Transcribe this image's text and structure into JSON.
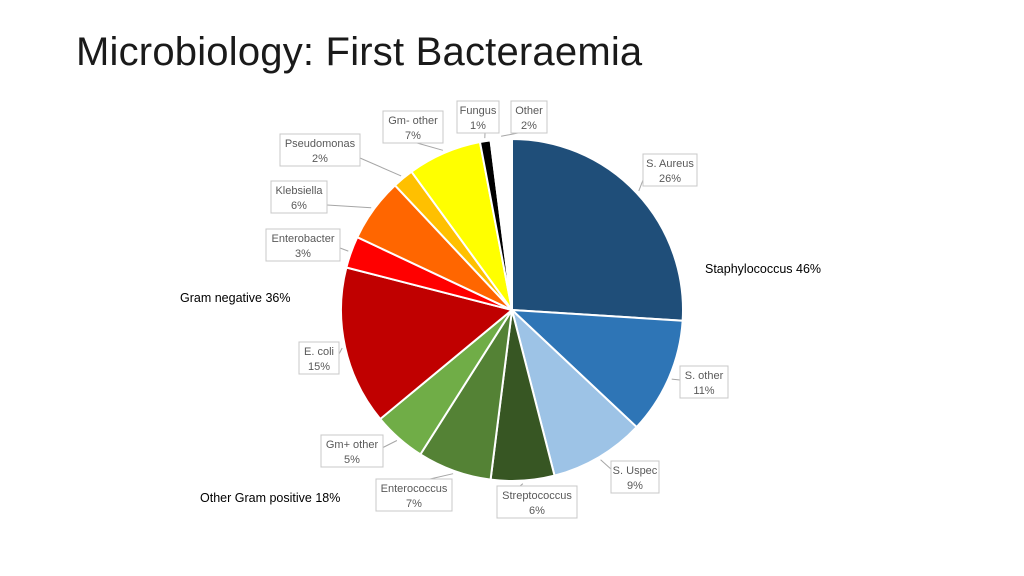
{
  "title": "Microbiology: First Bacteraemia",
  "chart_data": {
    "type": "pie",
    "title": "",
    "slices": [
      {
        "label": "S. Aureus",
        "value": 26,
        "value_label": "26%",
        "color": "#1f4e79"
      },
      {
        "label": "S. other",
        "value": 11,
        "value_label": "11%",
        "color": "#2e75b6"
      },
      {
        "label": "S. Uspec",
        "value": 9,
        "value_label": "9%",
        "color": "#9dc3e6"
      },
      {
        "label": "Streptococcus",
        "value": 6,
        "value_label": "6%",
        "color": "#375623"
      },
      {
        "label": "Enterococcus",
        "value": 7,
        "value_label": "7%",
        "color": "#548235"
      },
      {
        "label": "Gm+ other",
        "value": 5,
        "value_label": "5%",
        "color": "#70ad47"
      },
      {
        "label": "E. coli",
        "value": 15,
        "value_label": "15%",
        "color": "#c00000"
      },
      {
        "label": "Enterobacter",
        "value": 3,
        "value_label": "3%",
        "color": "#ff0000"
      },
      {
        "label": "Klebsiella",
        "value": 6,
        "value_label": "6%",
        "color": "#ff6600"
      },
      {
        "label": "Pseudomonas",
        "value": 2,
        "value_label": "2%",
        "color": "#ffc000"
      },
      {
        "label": "Gm- other",
        "value": 7,
        "value_label": "7%",
        "color": "#ffff00"
      },
      {
        "label": "Fungus",
        "value": 1,
        "value_label": "1%",
        "color": "#000000"
      },
      {
        "label": "Other",
        "value": 2,
        "value_label": "2%",
        "color": "#ffffff"
      }
    ],
    "group_labels": [
      {
        "text": "Staphylococcus 46%"
      },
      {
        "text": "Gram negative 36%"
      },
      {
        "text": "Other Gram positive 18%"
      }
    ]
  }
}
